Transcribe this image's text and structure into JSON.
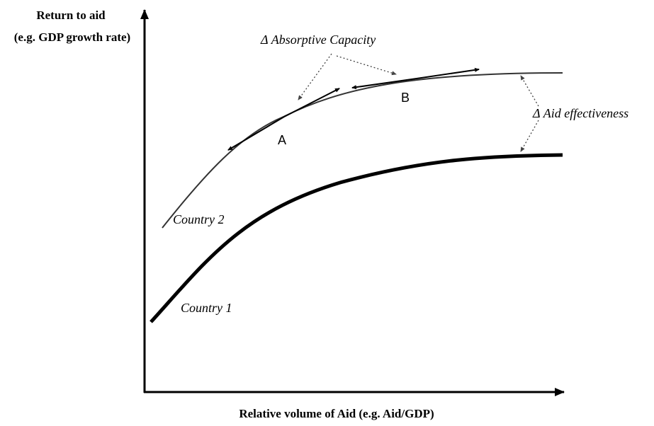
{
  "diagram": {
    "y_axis_title_line1": "Return to aid",
    "y_axis_title_line2": "(e.g. GDP growth rate)",
    "x_axis_title": "Relative volume of Aid (e.g. Aid/GDP)",
    "absorptive_capacity_label": "Δ Absorptive Capacity",
    "aid_effectiveness_label": "Δ Aid effectiveness",
    "point_a_label": "A",
    "point_b_label": "B",
    "country_2_label": "Country 2",
    "country_1_label": "Country 1",
    "colors": {
      "ink": "#000000",
      "curve_country_2": "#333333",
      "dotted_arrows": "#444444"
    }
  }
}
